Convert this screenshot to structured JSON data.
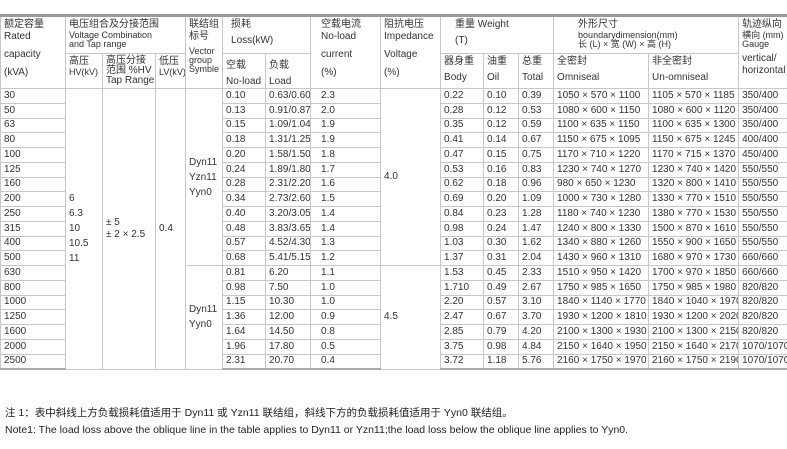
{
  "header": {
    "capacity": [
      "额定容量",
      "Rated",
      "capacity",
      "(kVA)"
    ],
    "voltage": [
      "电压组合及分接范围",
      "Voltage Combination",
      "and Tap range"
    ],
    "hv": [
      "高压",
      "HV(kV)"
    ],
    "tap": [
      "高压分接",
      "范围 %HV",
      "Tap Range"
    ],
    "lv": [
      "低压",
      "LV(kV)"
    ],
    "vector": [
      "联结组",
      "标号",
      "Vector",
      "group",
      "Symble"
    ],
    "loss": [
      "损耗",
      "Loss(kW)"
    ],
    "noload_loss": [
      "空载",
      "No-load"
    ],
    "load_loss": [
      "负载",
      "Load"
    ],
    "current": [
      "空载电流",
      "No-load",
      "current",
      "(%)"
    ],
    "impedance": [
      "阻抗电压",
      "Impedance",
      "Voltage",
      "(%)"
    ],
    "weight": [
      "重量 Weight",
      "(T)"
    ],
    "body": [
      "器身重",
      "Body"
    ],
    "oil": [
      "油重",
      "Oil"
    ],
    "total": [
      "总重",
      "Total"
    ],
    "dimension": [
      "外形尺寸",
      "boundarydimension(mm)",
      "长 (L) × 宽 (W) × 高 (H)"
    ],
    "omniseal": [
      "全密封",
      "Omniseal"
    ],
    "unomniseal": [
      "非全密封",
      "Un-omniseal"
    ],
    "gauge": [
      "轨迹纵向",
      "横向 (mm)",
      "Gauge",
      "vertical/",
      "horizontal"
    ]
  },
  "merged": {
    "hv": [
      "6",
      "6.3",
      "10",
      "10.5",
      "11"
    ],
    "tap": [
      "± 5",
      "± 2 × 2.5"
    ],
    "lv": "0.4",
    "vector_a": [
      "Dyn11",
      "Yzn11",
      "Yyn0"
    ],
    "vector_b": [
      "Dyn11",
      "Yyn0"
    ],
    "impedance_a": "4.0",
    "impedance_b": "4.5"
  },
  "rows": [
    [
      "30",
      "0.10",
      "0.63/0.60",
      "2.3",
      "0.22",
      "0.10",
      "0.39",
      "1050 × 570 × 1100",
      "1105 × 570 × 1185",
      "350/400"
    ],
    [
      "50",
      "0.13",
      "0.91/0.87",
      "2.0",
      "0.28",
      "0.12",
      "0.53",
      "1080 × 600 × 1150",
      "1080 × 600 × 1120",
      "350/400"
    ],
    [
      "63",
      "0.15",
      "1.09/1.04",
      "1.9",
      "0.35",
      "0.12",
      "0.59",
      "1100 × 635 × 1150",
      "1100 × 635 × 1300",
      "350/400"
    ],
    [
      "80",
      "0.18",
      "1.31/1.25",
      "1.9",
      "0.41",
      "0.14",
      "0.67",
      "1150 × 675 × 1095",
      "1150 × 675 × 1245",
      "400/400"
    ],
    [
      "100",
      "0.20",
      "1.58/1.50",
      "1.8",
      "0.47",
      "0.15",
      "0.75",
      "1170 × 710 × 1220",
      "1170 × 715 × 1370",
      "450/400"
    ],
    [
      "125",
      "0.24",
      "1.89/1.80",
      "1.7",
      "0.53",
      "0.16",
      "0.83",
      "1230 × 740 × 1270",
      "1230 × 740 × 1420",
      "550/550"
    ],
    [
      "160",
      "0.28",
      "2.31/2.20",
      "1.6",
      "0.62",
      "0.18",
      "0.96",
      "980 × 650 × 1230",
      "1320 × 800 × 1410",
      "550/550"
    ],
    [
      "200",
      "0.34",
      "2.73/2.60",
      "1.5",
      "0.69",
      "0.20",
      "1.09",
      "1000 × 730 × 1280",
      "1330 × 770 × 1510",
      "550/550"
    ],
    [
      "250",
      "0.40",
      "3.20/3.05",
      "1.4",
      "0.84",
      "0.23",
      "1.28",
      "1180 × 740 × 1230",
      "1380 × 770 × 1530",
      "550/550"
    ],
    [
      "315",
      "0.48",
      "3.83/3.65",
      "1.4",
      "0.98",
      "0.24",
      "1.47",
      "1240 × 800 × 1330",
      "1500 × 870 × 1610",
      "550/550"
    ],
    [
      "400",
      "0.57",
      "4.52/4.30",
      "1.3",
      "1.03",
      "0.30",
      "1.62",
      "1340 × 880 × 1260",
      "1550 × 900 × 1650",
      "550/550"
    ],
    [
      "500",
      "0.68",
      "5.41/5.15",
      "1.2",
      "1.37",
      "0.31",
      "2.04",
      "1430 × 960 × 1310",
      "1680 × 970 × 1730",
      "660/660"
    ],
    [
      "630",
      "0.81",
      "6.20",
      "1.1",
      "1.53",
      "0.45",
      "2.33",
      "1510 × 950 × 1420",
      "1700 × 970 × 1850",
      "660/660"
    ],
    [
      "800",
      "0.98",
      "7.50",
      "1.0",
      "1.710",
      "0.49",
      "2.67",
      "1750 × 985 × 1650",
      "1750 × 985 × 1980",
      "820/820"
    ],
    [
      "1000",
      "1.15",
      "10.30",
      "1.0",
      "2.20",
      "0.57",
      "3.10",
      "1840 × 1140 × 1770",
      "1840 × 1040 × 1970",
      "820/820"
    ],
    [
      "1250",
      "1.36",
      "12.00",
      "0.9",
      "2.47",
      "0.67",
      "3.70",
      "1930 × 1200 × 1810",
      "1930 × 1200 × 2020",
      "820/820"
    ],
    [
      "1600",
      "1.64",
      "14.50",
      "0.8",
      "2.85",
      "0.79",
      "4.20",
      "2100 × 1300 × 1930",
      "2100 × 1300 × 2150",
      "820/820"
    ],
    [
      "2000",
      "1.96",
      "17.80",
      "0.5",
      "3.75",
      "0.98",
      "4.84",
      "2150 × 1640 × 1950",
      "2150 × 1640 × 2170",
      "1070/1070"
    ],
    [
      "2500",
      "2.31",
      "20.70",
      "0.4",
      "3.72",
      "1.18",
      "5.76",
      "2160 × 1750 × 1970",
      "2160 × 1750 × 2190",
      "1070/1070"
    ]
  ],
  "notes": {
    "cn": "注 1：表中斜线上方负载损耗值适用于 Dyn11 或 Yzn11 联结组，斜线下方的负载损耗值适用于 Yyn0 联结组。",
    "en": "Note1: The load loss above the oblique line in the table applies to Dyn11 or Yzn11;the load loss below the oblique line applies to Yyn0."
  }
}
